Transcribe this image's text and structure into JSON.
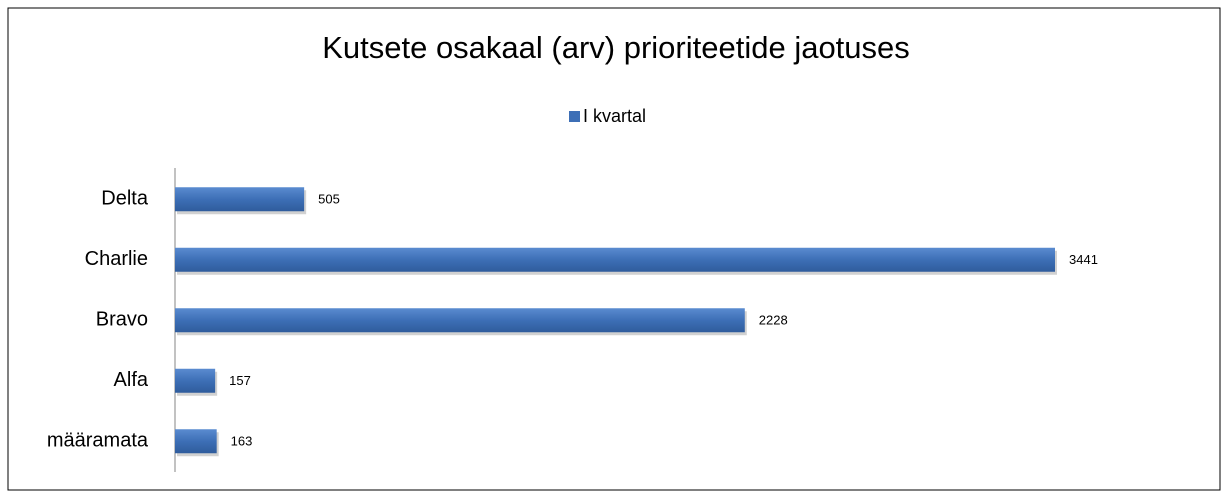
{
  "chart_data": {
    "type": "bar",
    "orientation": "horizontal",
    "title": "Kutsete osakaal (arv) prioriteetide jaotuses",
    "categories": [
      "Delta",
      "Charlie",
      "Bravo",
      "Alfa",
      "määramata"
    ],
    "series": [
      {
        "name": "I kvartal",
        "color": "#3d6fb6",
        "values": [
          505,
          3441,
          2228,
          157,
          163
        ]
      }
    ],
    "legend": "top"
  }
}
